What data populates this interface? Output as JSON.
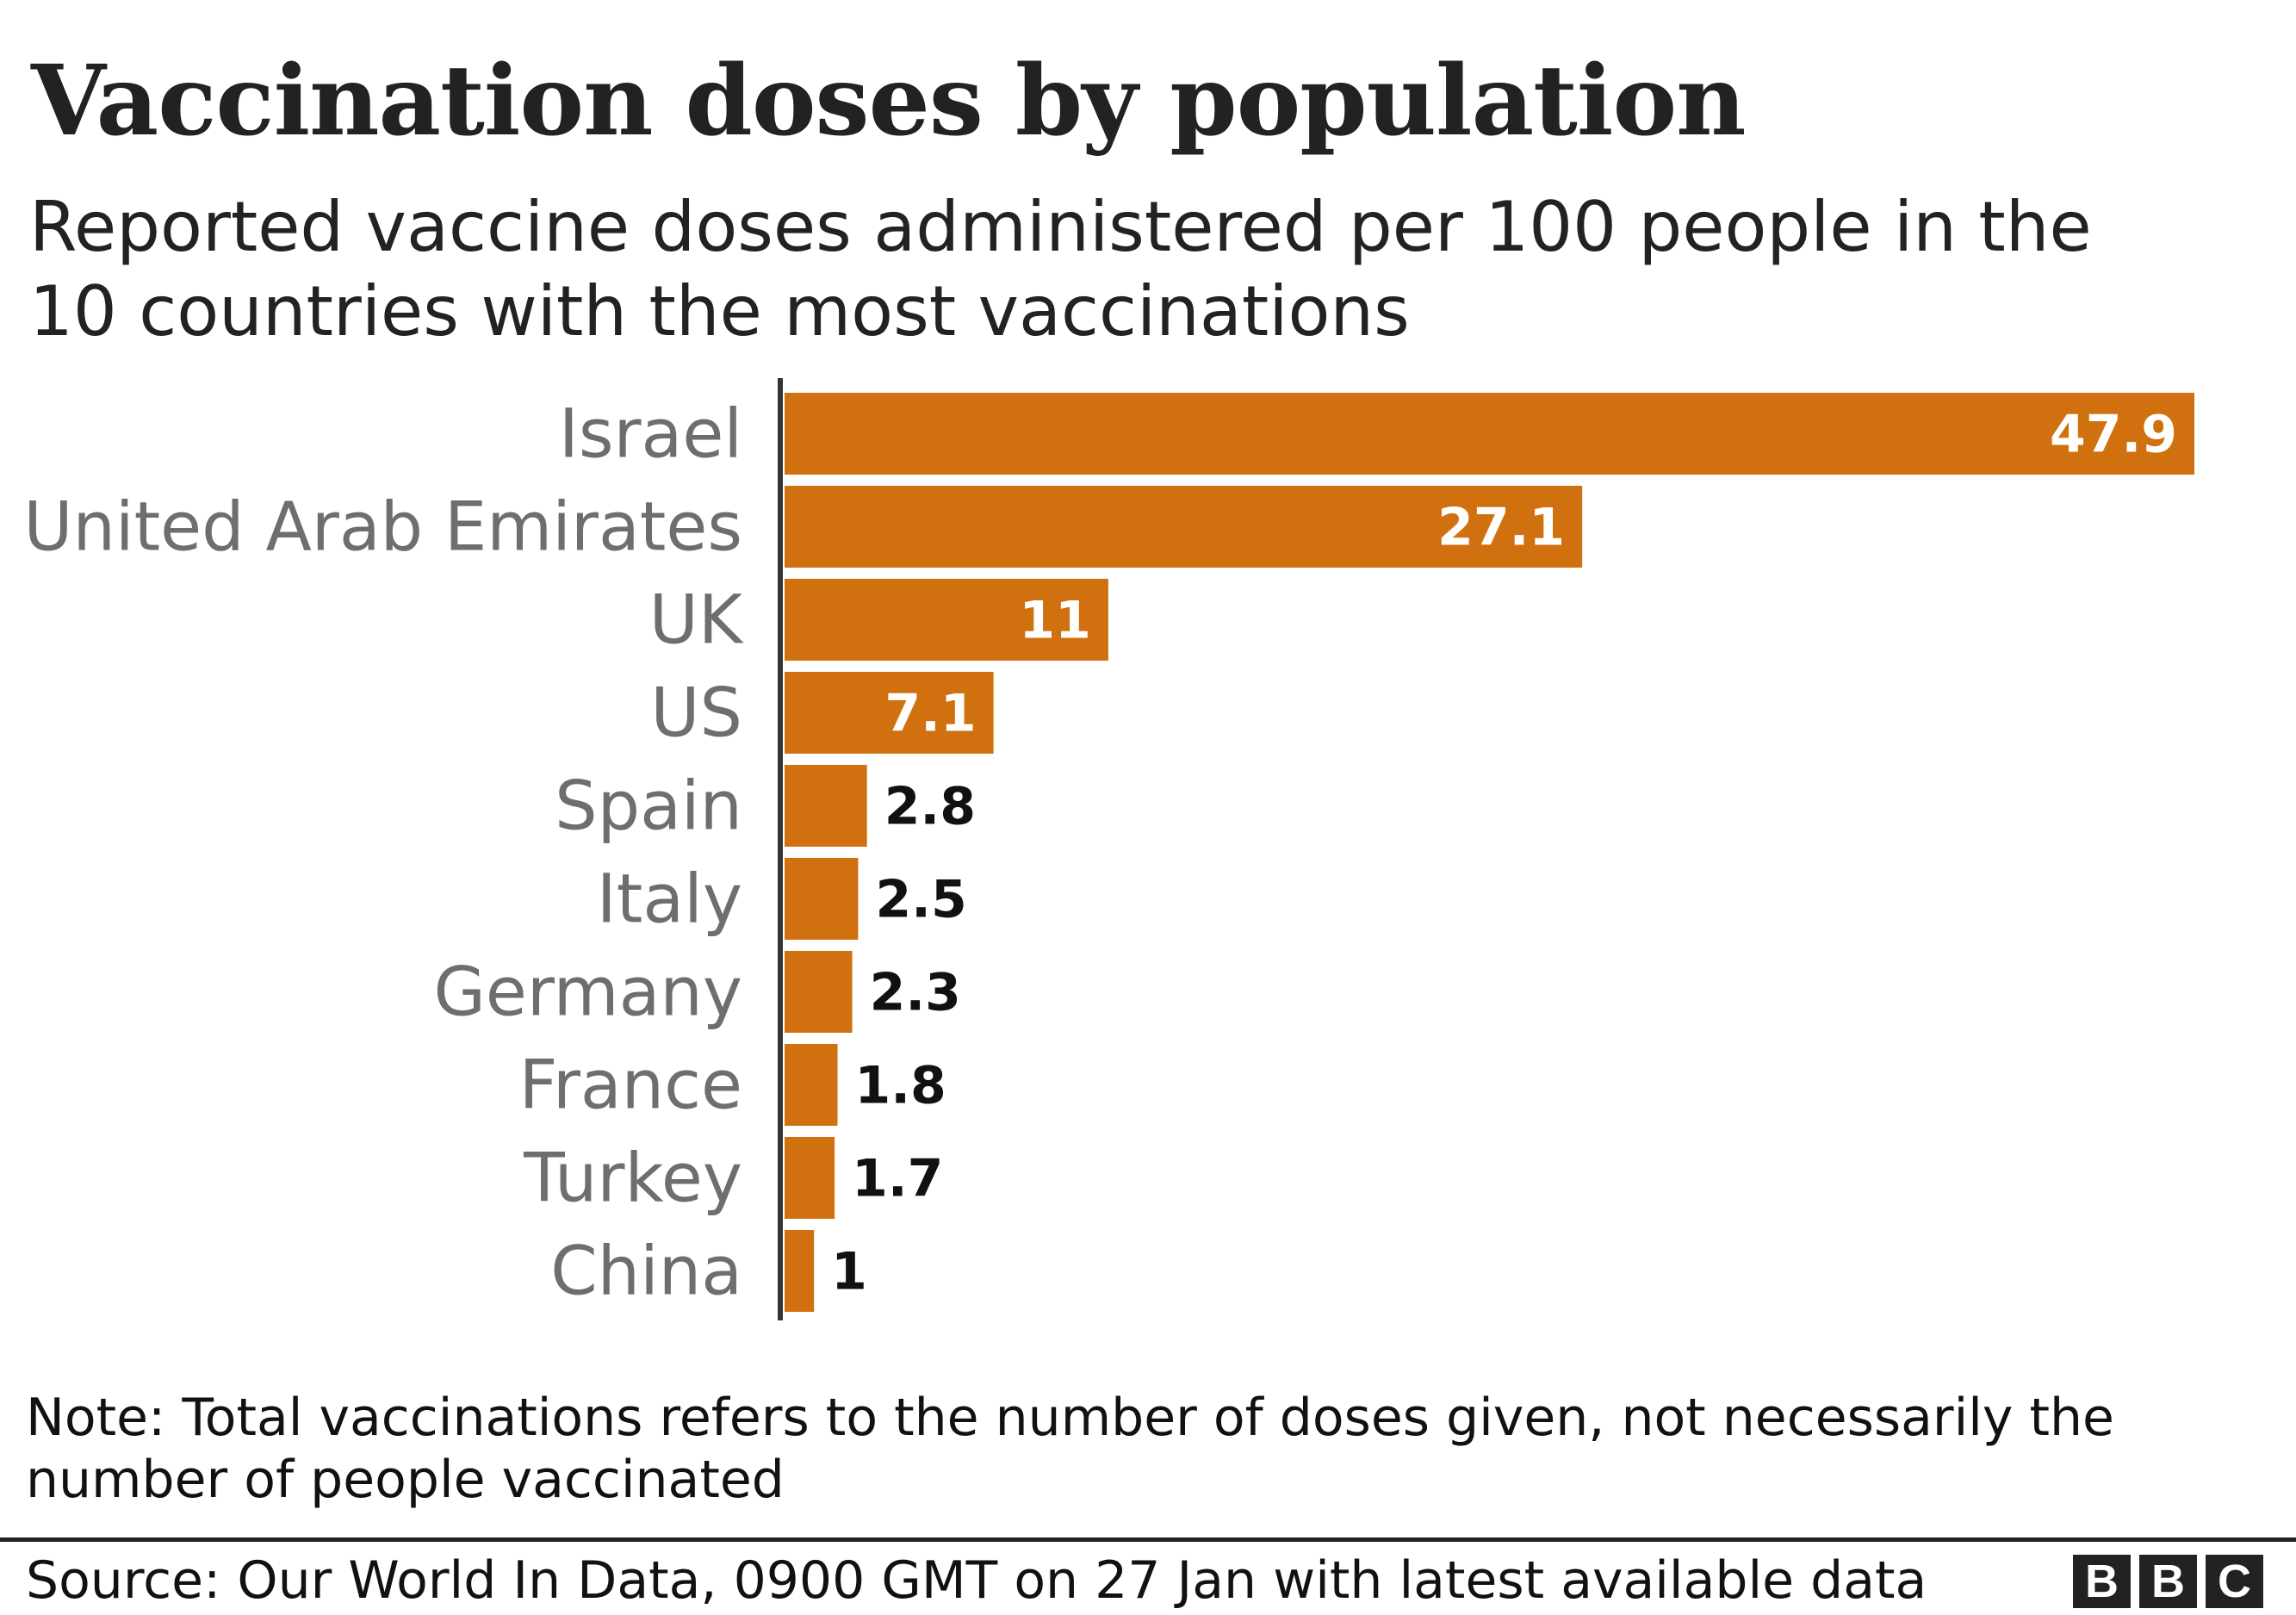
{
  "chart_data": {
    "type": "bar",
    "orientation": "horizontal",
    "title": "Vaccination doses by population",
    "subtitle": "Reported vaccine doses administered per 100 people in the 10 countries with the most vaccinations",
    "categories": [
      "Israel",
      "United Arab Emirates",
      "UK",
      "US",
      "Spain",
      "Italy",
      "Germany",
      "France",
      "Turkey",
      "China"
    ],
    "values": [
      47.9,
      27.1,
      11,
      7.1,
      2.8,
      2.5,
      2.3,
      1.8,
      1.7,
      1
    ],
    "value_labels": [
      "47.9",
      "27.1",
      "11",
      "7.1",
      "2.8",
      "2.5",
      "2.3",
      "1.8",
      "1.7",
      "1"
    ],
    "xlim": [
      0,
      47.9
    ],
    "grid": false,
    "bar_color": "#d1700e",
    "label_inside_color": "#ffffff",
    "label_outside_color": "#111111",
    "category_label_color": "#6e6e6e"
  },
  "note": "Note: Total vaccinations refers to the number of doses given, not necessarily the number of people vaccinated",
  "source": "Source: Our World In Data, 0900 GMT on 27 Jan with latest available data",
  "logo": "BBC"
}
